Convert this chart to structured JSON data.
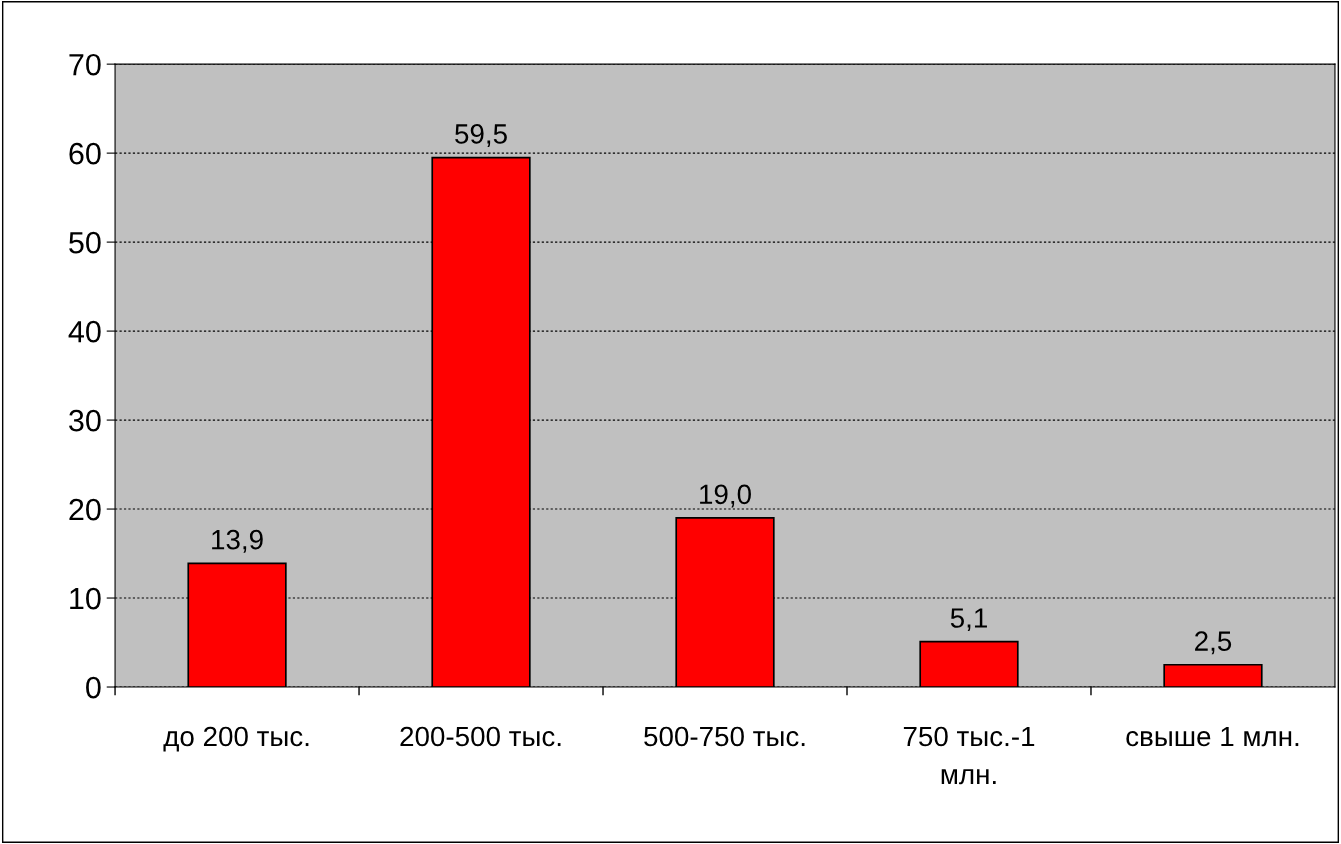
{
  "chart_data": {
    "type": "bar",
    "categories": [
      "до 200 тыс.",
      "200-500 тыс.",
      "500-750 тыс.",
      "750 тыс.-1 млн.",
      "свыше 1 млн."
    ],
    "values": [
      13.9,
      59.5,
      19.0,
      5.1,
      2.5
    ],
    "value_labels": [
      "13,9",
      "59,5",
      "19,0",
      "5,1",
      "2,5"
    ],
    "color": "#ff0000",
    "ylim": [
      0,
      70
    ],
    "yticks": [
      0,
      10,
      20,
      30,
      40,
      50,
      60,
      70
    ],
    "grid": "y"
  }
}
